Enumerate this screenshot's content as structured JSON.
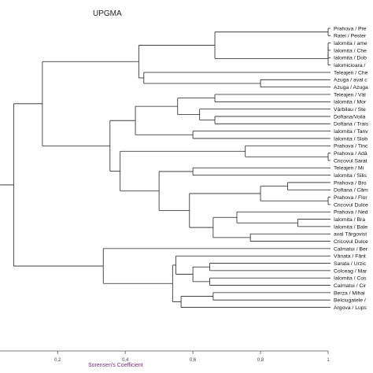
{
  "chart": {
    "title": "UPGMA",
    "xlabel": "Sorensen's Coefficient",
    "x_ticks": [
      "0,2",
      "0,4",
      "0,6",
      "0,8",
      "1"
    ],
    "leaves": [
      "Prahova / Pre",
      "Ratei / Pester",
      "Ialomita / ame",
      "Ialomita / Che",
      "Ialomita / Dob",
      "Ialomicioara /",
      "Teleajen / Che",
      "Azuga / aval c",
      "Azuga / Azuga",
      "Teleajen / Väl",
      "Ialomita / Mor",
      "Vârbilau / Ste",
      "Doftana/Voila",
      "Doftana / Trais",
      "Ialomita / Tanv",
      "Ialomita / Slob",
      "Prahova / Tinc",
      "Prahova / Adâ",
      "Cricovul Sarat",
      "Teleajen / Mi",
      "Ialomita / Silis",
      "Prahova / Bro",
      "Doftana / Câm",
      "Prahova / Flor",
      "Cricovul Dulce",
      "Prahova / Ned",
      "Ialomita / Bra",
      "Ialomita / Bale",
      "aval Târgovist",
      "Cricovul Dulce",
      "Calmatui / Ber",
      "Vânata / Fânt",
      "Sarata / Urzic",
      "Colceag / Mar",
      "Ialomita / Cos",
      "Calmatui / Cir",
      "Berza / Mihai",
      "Belciugatele /",
      "Argova / Lups"
    ]
  },
  "chart_data": {
    "type": "dendrogram",
    "method": "UPGMA",
    "title": "UPGMA",
    "xlabel": "Sorensen's Coefficient",
    "xlim": [
      0.025,
      1.0
    ],
    "x_ticks": [
      0.2,
      0.4,
      0.6,
      0.8,
      1.0
    ],
    "leaf_order": [
      "Prahova / Pre",
      "Ratei / Pester",
      "Ialomita / ame",
      "Ialomita / Che",
      "Ialomita / Dob",
      "Ialomicioara /",
      "Teleajen / Che",
      "Azuga / aval c",
      "Azuga / Azuga",
      "Teleajen / Väl",
      "Ialomita / Mor",
      "Vârbilau / Ste",
      "Doftana/Voila",
      "Doftana / Trais",
      "Ialomita / Tanv",
      "Ialomita / Slob",
      "Prahova / Tinc",
      "Prahova / Adâ",
      "Cricovul Sarat",
      "Teleajen / Mi",
      "Ialomita / Silis",
      "Prahova / Bro",
      "Doftana / Câm",
      "Prahova / Flor",
      "Cricovul Dulce",
      "Prahova / Ned",
      "Ialomita / Bra",
      "Ialomita / Bale",
      "aval Târgovist",
      "Cricovul Dulce",
      "Calmatui / Ber",
      "Vânata / Fânt",
      "Sarata / Urzic",
      "Colceag / Mar",
      "Ialomita / Cos",
      "Calmatui / Cir",
      "Berza / Mihai",
      "Belciugatele /",
      "Argova / Lups"
    ],
    "merges": [
      {
        "id": "A",
        "left": 0,
        "right": 1,
        "similarity": 1.0
      },
      {
        "id": "B",
        "left": 2,
        "right": 3,
        "similarity": 1.0
      },
      {
        "id": "C",
        "left": "B",
        "right": 4,
        "similarity": 1.0
      },
      {
        "id": "D",
        "left": "C",
        "right": 5,
        "similarity": 1.0
      },
      {
        "id": "E",
        "left": "A",
        "right": "D",
        "similarity": 0.665
      },
      {
        "id": "F",
        "left": 7,
        "right": 8,
        "similarity": 0.8
      },
      {
        "id": "G",
        "left": 6,
        "right": "F",
        "similarity": 0.455
      },
      {
        "id": "H",
        "left": "E",
        "right": "G",
        "similarity": 0.44
      },
      {
        "id": "I",
        "left": 9,
        "right": 10,
        "similarity": 0.665
      },
      {
        "id": "J",
        "left": 12,
        "right": 13,
        "similarity": 0.665
      },
      {
        "id": "K",
        "left": 11,
        "right": "J",
        "similarity": 0.62
      },
      {
        "id": "L",
        "left": "I",
        "right": "K",
        "similarity": 0.555
      },
      {
        "id": "M",
        "left": 14,
        "right": 15,
        "similarity": 0.6
      },
      {
        "id": "N",
        "left": "L",
        "right": "M",
        "similarity": 0.43
      },
      {
        "id": "O",
        "left": 17,
        "right": 18,
        "similarity": 1.0
      },
      {
        "id": "P",
        "left": 16,
        "right": "O",
        "similarity": 0.755
      },
      {
        "id": "Q",
        "left": 19,
        "right": 20,
        "similarity": 0.6
      },
      {
        "id": "R",
        "left": 21,
        "right": 22,
        "similarity": 0.88
      },
      {
        "id": "S",
        "left": 23,
        "right": 24,
        "similarity": 1.0
      },
      {
        "id": "T",
        "left": "R",
        "right": "S",
        "similarity": 0.8
      },
      {
        "id": "U",
        "left": 26,
        "right": 27,
        "similarity": 0.91
      },
      {
        "id": "V",
        "left": 25,
        "right": "U",
        "similarity": 0.73
      },
      {
        "id": "W",
        "left": 28,
        "right": 29,
        "similarity": 0.77
      },
      {
        "id": "X",
        "left": "V",
        "right": "W",
        "similarity": 0.66
      },
      {
        "id": "Y",
        "left": "T",
        "right": "X",
        "similarity": 0.59
      },
      {
        "id": "Z",
        "left": "Q",
        "right": "Y",
        "similarity": 0.5
      },
      {
        "id": "AA",
        "left": "P",
        "right": "Z",
        "similarity": 0.385
      },
      {
        "id": "AB",
        "left": "N",
        "right": "AA",
        "similarity": 0.355
      },
      {
        "id": "AC",
        "left": "H",
        "right": "AB",
        "similarity": 0.155
      },
      {
        "id": "AD",
        "left": 32,
        "right": 33,
        "similarity": 0.65
      },
      {
        "id": "AE",
        "left": 34,
        "right": 35,
        "similarity": 0.65
      },
      {
        "id": "AF",
        "left": "AD",
        "right": "AE",
        "similarity": 0.6
      },
      {
        "id": "AG",
        "left": 31,
        "right": "AF",
        "similarity": 0.55
      },
      {
        "id": "AH",
        "left": 36,
        "right": 37,
        "similarity": 0.66
      },
      {
        "id": "AI",
        "left": "AH",
        "right": 38,
        "similarity": 0.565
      },
      {
        "id": "AJ",
        "left": "AG",
        "right": "AI",
        "similarity": 0.54
      },
      {
        "id": "AK",
        "left": 30,
        "right": "AJ",
        "similarity": 0.335
      },
      {
        "id": "AL",
        "left": "AC",
        "right": "AK",
        "similarity": 0.07
      },
      {
        "id": "AM",
        "left": "AL",
        "right": "AL",
        "similarity": 0.03
      }
    ]
  }
}
